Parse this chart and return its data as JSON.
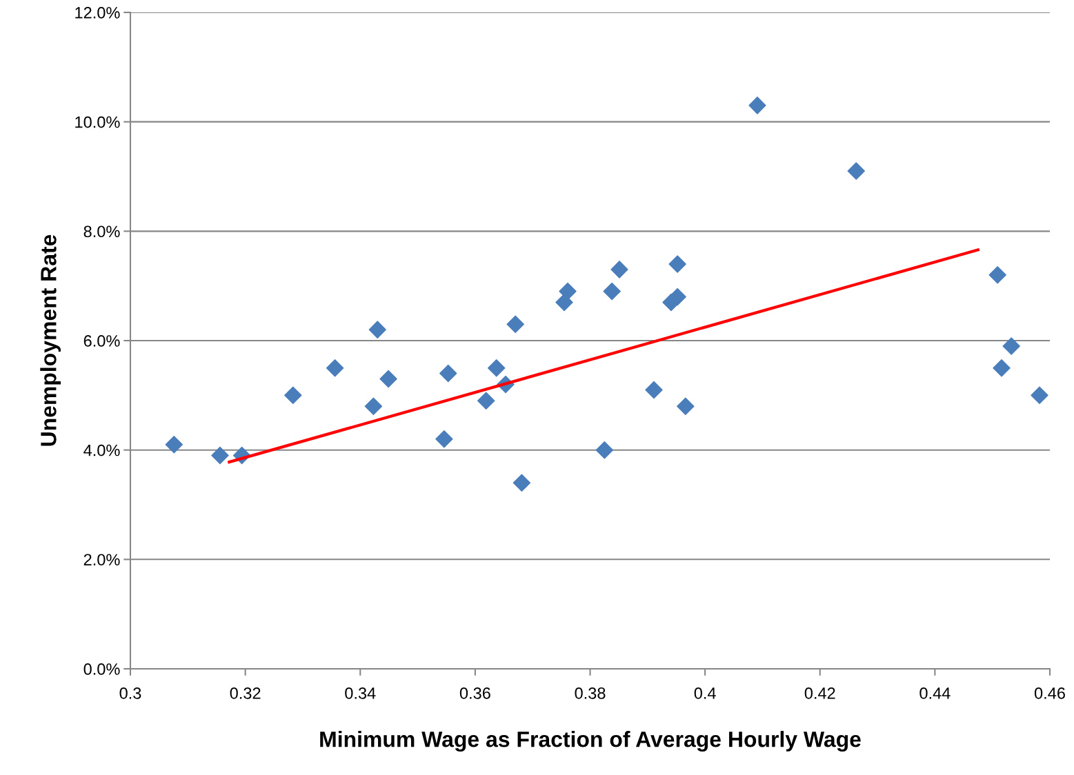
{
  "chart_data": {
    "type": "scatter",
    "xlabel": "Minimum Wage as Fraction of Average Hourly Wage",
    "ylabel": "Unemployment Rate",
    "x": [
      0.3076,
      0.3156,
      0.3194,
      0.3283,
      0.3356,
      0.3423,
      0.343,
      0.3449,
      0.3546,
      0.3553,
      0.3619,
      0.3637,
      0.3653,
      0.367,
      0.3681,
      0.3755,
      0.3761,
      0.3825,
      0.3838,
      0.3851,
      0.3911,
      0.3941,
      0.3952,
      0.3952,
      0.3966,
      0.4091,
      0.4263,
      0.4509,
      0.4516,
      0.4533,
      0.4582
    ],
    "series": [
      {
        "color": "#4a7ebb",
        "marker": "diamond",
        "values": [
          4.1,
          3.9,
          3.9,
          5.0,
          5.5,
          4.8,
          6.2,
          5.3,
          4.2,
          5.4,
          4.9,
          5.5,
          5.2,
          6.3,
          3.4,
          6.7,
          6.9,
          4.0,
          6.9,
          7.3,
          5.1,
          6.7,
          6.8,
          7.4,
          4.8,
          10.3,
          9.1,
          7.2,
          5.5,
          5.9,
          5.0
        ]
      },
      {
        "type": "line",
        "color": "#ff0000",
        "marker": "none",
        "x": [
          0.3172,
          0.4475
        ],
        "values": [
          3.78,
          7.66
        ]
      }
    ],
    "xlim": [
      0.3,
      0.46
    ],
    "xticks": [
      {
        "value": 0.3,
        "label": "0.3"
      },
      0.32,
      0.34,
      0.36,
      0.38,
      {
        "value": 0.4,
        "label": "0.4"
      },
      0.42,
      0.44,
      0.46
    ],
    "ylim": [
      0,
      12
    ],
    "yticks": [
      {
        "value": 0,
        "label": "0.0%"
      },
      {
        "value": 2,
        "label": "2.0%"
      },
      {
        "value": 4,
        "label": "4.0%"
      },
      {
        "value": 6,
        "label": "6.0%"
      },
      {
        "value": 8,
        "label": "8.0%"
      },
      {
        "value": 10,
        "label": "10.0%"
      },
      {
        "value": 12,
        "label": "12.0%"
      }
    ],
    "grid": "y",
    "legend": false
  }
}
